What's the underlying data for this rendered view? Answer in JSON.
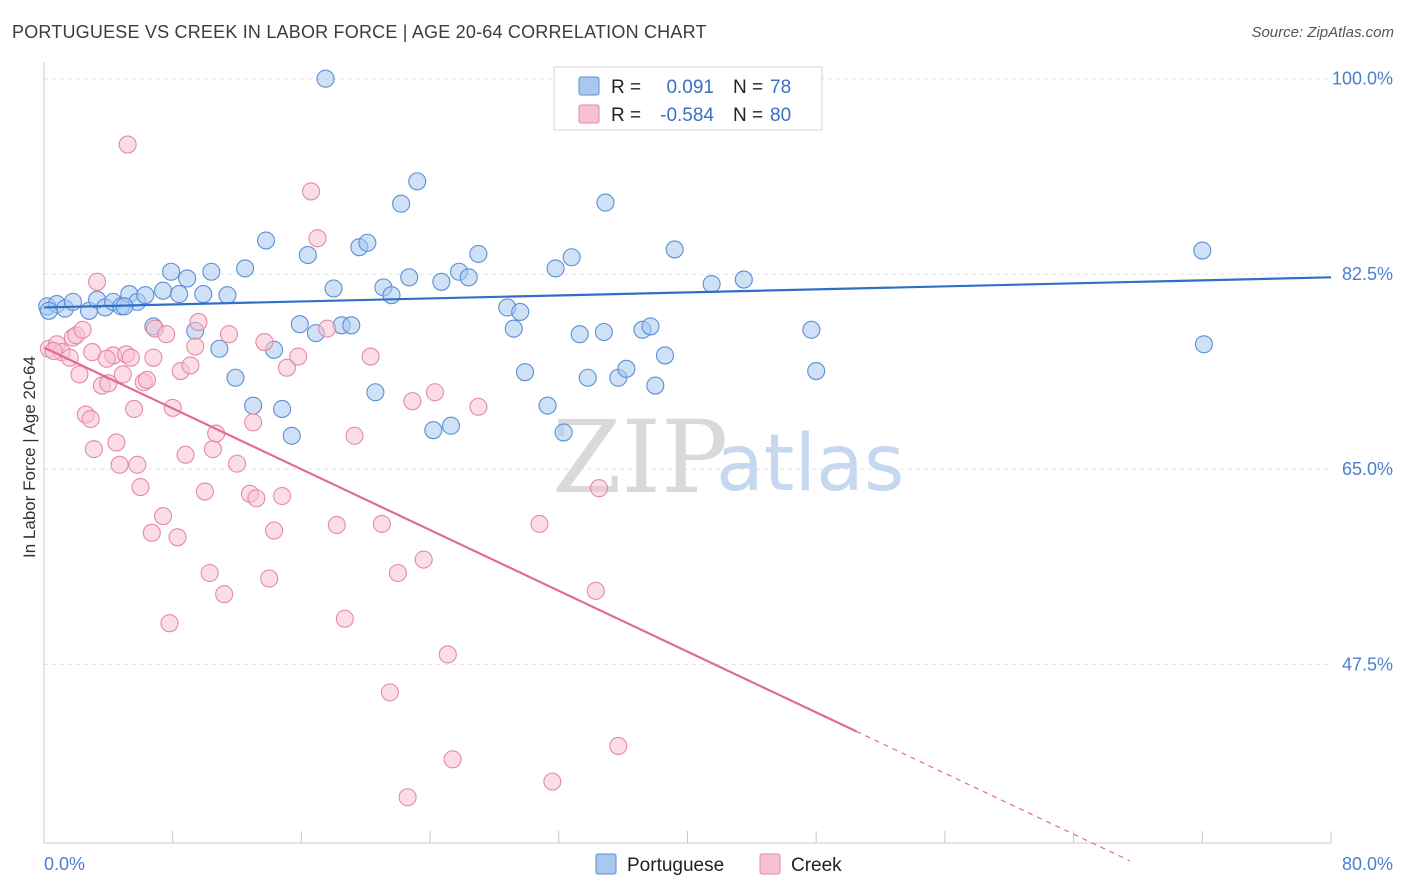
{
  "header": {
    "title": "PORTUGUESE VS CREEK IN LABOR FORCE | AGE 20-64 CORRELATION CHART",
    "source": "Source: ZipAtlas.com"
  },
  "watermark": {
    "zip": "ZIP",
    "atlas": "atlas"
  },
  "legend": {
    "rows": [
      {
        "r_label": "R =",
        "r_value": "0.091",
        "n_label": "N =",
        "n_value": "78",
        "color": "#a8c8ee",
        "stroke": "#5b8fd6"
      },
      {
        "r_label": "R =",
        "r_value": "-0.584",
        "n_label": "N =",
        "n_value": "80",
        "color": "#f7c1d0",
        "stroke": "#e58aa6"
      }
    ]
  },
  "bottom_legend": [
    {
      "label": "Portuguese",
      "color": "#a8c8ee",
      "stroke": "#5b8fd6"
    },
    {
      "label": "Creek",
      "color": "#f7c1d0",
      "stroke": "#e58aa6"
    }
  ],
  "chart_data": {
    "type": "scatter",
    "ylabel": "In Labor Force | Age 20-64",
    "xlim": [
      0,
      80
    ],
    "ylim": [
      31.5,
      101.5
    ],
    "x_tick_labels": [
      {
        "value": 0,
        "label": "0.0%"
      },
      {
        "value": 80,
        "label": "80.0%"
      }
    ],
    "y_ticks": [
      {
        "value": 100,
        "label": "100.0%"
      },
      {
        "value": 82.5,
        "label": "82.5%"
      },
      {
        "value": 65,
        "label": "65.0%"
      },
      {
        "value": 47.5,
        "label": "47.5%"
      }
    ],
    "grid": true,
    "series": [
      {
        "name": "Portuguese",
        "color": "#a8c8ee",
        "stroke": "#5b8fd6",
        "trend": {
          "x": [
            0,
            80
          ],
          "y": [
            79.5,
            82.2
          ],
          "color": "#2f6fc9"
        },
        "points": [
          [
            0.2,
            79.6
          ],
          [
            0.8,
            79.8
          ],
          [
            1.3,
            79.4
          ],
          [
            1.8,
            80.0
          ],
          [
            2.8,
            79.2
          ],
          [
            3.3,
            80.2
          ],
          [
            3.8,
            79.5
          ],
          [
            4.3,
            80.0
          ],
          [
            4.8,
            79.6
          ],
          [
            5.3,
            80.7
          ],
          [
            5.8,
            80.0
          ],
          [
            6.3,
            80.6
          ],
          [
            6.8,
            77.8
          ],
          [
            7.4,
            81.0
          ],
          [
            7.9,
            82.7
          ],
          [
            8.4,
            80.7
          ],
          [
            8.9,
            82.1
          ],
          [
            9.4,
            77.4
          ],
          [
            9.9,
            80.7
          ],
          [
            10.4,
            82.7
          ],
          [
            10.9,
            75.8
          ],
          [
            11.4,
            80.6
          ],
          [
            11.9,
            73.2
          ],
          [
            12.5,
            83.0
          ],
          [
            13.0,
            70.7
          ],
          [
            13.8,
            85.5
          ],
          [
            14.3,
            75.7
          ],
          [
            14.8,
            70.4
          ],
          [
            15.4,
            68.0
          ],
          [
            15.9,
            78.0
          ],
          [
            16.4,
            84.2
          ],
          [
            16.9,
            77.2
          ],
          [
            17.5,
            100.0
          ],
          [
            18.0,
            81.2
          ],
          [
            18.5,
            77.9
          ],
          [
            19.1,
            77.9
          ],
          [
            19.6,
            84.9
          ],
          [
            20.1,
            85.3
          ],
          [
            20.6,
            71.9
          ],
          [
            21.1,
            81.3
          ],
          [
            21.6,
            80.6
          ],
          [
            22.2,
            88.8
          ],
          [
            22.7,
            82.2
          ],
          [
            23.2,
            90.8
          ],
          [
            24.2,
            68.5
          ],
          [
            24.7,
            81.8
          ],
          [
            25.3,
            68.9
          ],
          [
            25.8,
            82.7
          ],
          [
            26.4,
            82.2
          ],
          [
            27.0,
            84.3
          ],
          [
            28.8,
            79.5
          ],
          [
            29.2,
            77.6
          ],
          [
            29.6,
            79.1
          ],
          [
            29.9,
            73.7
          ],
          [
            31.3,
            70.7
          ],
          [
            31.8,
            83.0
          ],
          [
            32.3,
            68.3
          ],
          [
            32.8,
            84.0
          ],
          [
            33.3,
            77.1
          ],
          [
            33.8,
            73.2
          ],
          [
            34.8,
            77.3
          ],
          [
            34.9,
            88.9
          ],
          [
            35.7,
            73.2
          ],
          [
            36.2,
            74.0
          ],
          [
            37.2,
            77.5
          ],
          [
            37.7,
            77.8
          ],
          [
            38.0,
            72.5
          ],
          [
            38.6,
            75.2
          ],
          [
            38.7,
            100.0
          ],
          [
            39.2,
            84.7
          ],
          [
            41.5,
            81.6
          ],
          [
            43.5,
            82.0
          ],
          [
            47.7,
            77.5
          ],
          [
            48.0,
            73.8
          ],
          [
            72.0,
            84.6
          ],
          [
            72.1,
            76.2
          ],
          [
            0.3,
            79.2
          ],
          [
            5.0,
            79.6
          ]
        ]
      },
      {
        "name": "Creek",
        "color": "#f7c1d0",
        "stroke": "#e58aa6",
        "trend": {
          "x": [
            0,
            50.5
          ],
          "y": [
            75.9,
            41.5
          ],
          "dash_to": {
            "x": 67.5,
            "y": 29.9
          },
          "color": "#e06a94"
        },
        "points": [
          [
            0.3,
            75.8
          ],
          [
            0.8,
            76.2
          ],
          [
            1.1,
            75.5
          ],
          [
            1.6,
            75.0
          ],
          [
            1.8,
            76.8
          ],
          [
            2.0,
            77.0
          ],
          [
            2.4,
            77.5
          ],
          [
            2.2,
            73.5
          ],
          [
            2.6,
            69.9
          ],
          [
            2.9,
            69.5
          ],
          [
            3.0,
            75.5
          ],
          [
            3.1,
            66.8
          ],
          [
            3.3,
            81.8
          ],
          [
            3.6,
            72.5
          ],
          [
            4.0,
            72.7
          ],
          [
            4.3,
            75.2
          ],
          [
            4.5,
            67.4
          ],
          [
            4.7,
            65.4
          ],
          [
            4.9,
            73.5
          ],
          [
            5.1,
            75.3
          ],
          [
            5.2,
            94.1
          ],
          [
            5.4,
            75.0
          ],
          [
            5.6,
            70.4
          ],
          [
            5.8,
            65.4
          ],
          [
            6.0,
            63.4
          ],
          [
            6.2,
            72.8
          ],
          [
            6.4,
            73.0
          ],
          [
            6.7,
            59.3
          ],
          [
            6.8,
            75.0
          ],
          [
            6.9,
            77.6
          ],
          [
            7.4,
            60.8
          ],
          [
            7.6,
            77.1
          ],
          [
            7.8,
            51.2
          ],
          [
            8.0,
            70.5
          ],
          [
            8.3,
            58.9
          ],
          [
            8.5,
            73.8
          ],
          [
            8.8,
            66.3
          ],
          [
            9.1,
            74.3
          ],
          [
            9.4,
            76.0
          ],
          [
            9.6,
            78.2
          ],
          [
            10.0,
            63.0
          ],
          [
            10.3,
            55.7
          ],
          [
            10.5,
            66.8
          ],
          [
            10.7,
            68.2
          ],
          [
            11.2,
            53.8
          ],
          [
            11.5,
            77.1
          ],
          [
            12.0,
            65.5
          ],
          [
            12.8,
            62.8
          ],
          [
            13.0,
            69.2
          ],
          [
            13.7,
            76.4
          ],
          [
            14.0,
            55.2
          ],
          [
            14.3,
            59.5
          ],
          [
            14.8,
            62.6
          ],
          [
            15.1,
            74.1
          ],
          [
            15.8,
            75.1
          ],
          [
            16.6,
            89.9
          ],
          [
            17.0,
            85.7
          ],
          [
            17.6,
            77.6
          ],
          [
            18.2,
            60.0
          ],
          [
            18.7,
            51.6
          ],
          [
            19.3,
            68.0
          ],
          [
            20.3,
            75.1
          ],
          [
            21.0,
            60.1
          ],
          [
            21.5,
            45.0
          ],
          [
            22.0,
            55.7
          ],
          [
            22.6,
            35.6
          ],
          [
            22.9,
            71.1
          ],
          [
            23.6,
            56.9
          ],
          [
            24.3,
            71.9
          ],
          [
            25.1,
            48.4
          ],
          [
            25.4,
            39.0
          ],
          [
            27.0,
            70.6
          ],
          [
            30.8,
            60.1
          ],
          [
            31.6,
            37.0
          ],
          [
            34.3,
            54.1
          ],
          [
            34.5,
            63.3
          ],
          [
            35.7,
            40.2
          ],
          [
            0.6,
            75.6
          ],
          [
            3.9,
            74.9
          ],
          [
            13.2,
            62.4
          ]
        ]
      }
    ]
  }
}
